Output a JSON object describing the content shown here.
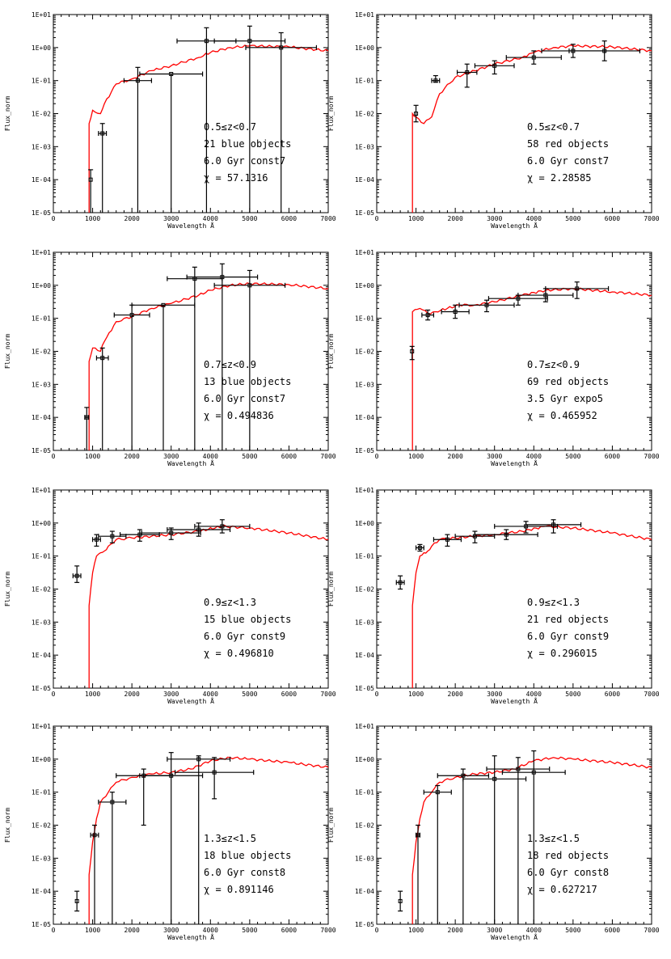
{
  "colors": {
    "model": "#ff0000",
    "data": "#000000",
    "axis": "#000000",
    "background": "#ffffff"
  },
  "common_axes": {
    "xlabel": "Wavelength Å",
    "ylabel": "Flux_norm",
    "xticks": [
      "0",
      "1000",
      "2000",
      "3000",
      "4000",
      "5000",
      "6000",
      "7000"
    ],
    "yticks": [
      "1E-05",
      "1E-04",
      "1E-03",
      "1E-02",
      "1E-01",
      "1E+00",
      "1E+01"
    ]
  },
  "chart_data": [
    {
      "type": "line",
      "title": "",
      "xlabel": "Wavelength Å",
      "ylabel": "Flux_norm",
      "xlim": [
        0,
        7000
      ],
      "ylim_log10": [
        -5,
        1
      ],
      "yscale": "log",
      "annotation": [
        "0.5≤z<0.7",
        "21 blue objects",
        "6.0 Gyr const7",
        "χ = 57.1316"
      ],
      "model": {
        "name": "6.0 Gyr const7",
        "cutoff": 910,
        "points": [
          [
            910,
            -5
          ],
          [
            910,
            -2.3
          ],
          [
            1000,
            -1.9
          ],
          [
            1200,
            -2.0
          ],
          [
            1300,
            -1.7
          ],
          [
            1600,
            -1.1
          ],
          [
            2000,
            -0.95
          ],
          [
            2500,
            -0.7
          ],
          [
            3000,
            -0.55
          ],
          [
            3700,
            -0.3
          ],
          [
            4000,
            -0.15
          ],
          [
            4500,
            0.0
          ],
          [
            5000,
            0.05
          ],
          [
            6000,
            0.02
          ],
          [
            7000,
            -0.1
          ]
        ]
      },
      "observations": [
        {
          "x": 950,
          "xerr": 0,
          "y": -4.0,
          "ylo": -5,
          "yhi": -3.7
        },
        {
          "x": 1250,
          "xerr": 100,
          "y": -2.6,
          "ylo": -5,
          "yhi": -2.3
        },
        {
          "x": 2150,
          "xerr": 350,
          "y": -1.0,
          "ylo": -5,
          "yhi": -0.6
        },
        {
          "x": 3000,
          "xerr": 800,
          "y": -0.8,
          "ylo": -5,
          "yhi": -0.8
        },
        {
          "x": 3900,
          "xerr": 750,
          "y": 0.2,
          "ylo": -5,
          "yhi": 0.6
        },
        {
          "x": 5000,
          "xerr": 900,
          "y": 0.2,
          "ylo": -5,
          "yhi": 0.65
        },
        {
          "x": 5800,
          "xerr": 900,
          "y": 0.0,
          "ylo": -5,
          "yhi": 0.45
        }
      ]
    },
    {
      "type": "line",
      "title": "",
      "xlabel": "Wavelength Å",
      "ylabel": "Flux_norm",
      "xlim": [
        0,
        7000
      ],
      "ylim_log10": [
        -5,
        1
      ],
      "yscale": "log",
      "annotation": [
        "0.5≤z<0.7",
        "58 red objects",
        "6.0 Gyr const7",
        "χ = 2.28585"
      ],
      "model": {
        "name": "6.0 Gyr const7",
        "cutoff": 910,
        "points": [
          [
            910,
            -5
          ],
          [
            910,
            -2.0
          ],
          [
            1000,
            -2.1
          ],
          [
            1200,
            -2.3
          ],
          [
            1400,
            -2.1
          ],
          [
            1600,
            -1.4
          ],
          [
            2000,
            -0.9
          ],
          [
            2500,
            -0.7
          ],
          [
            3000,
            -0.5
          ],
          [
            3700,
            -0.3
          ],
          [
            4000,
            -0.15
          ],
          [
            4500,
            0.0
          ],
          [
            5000,
            0.05
          ],
          [
            6000,
            0.02
          ],
          [
            7000,
            -0.1
          ]
        ]
      },
      "observations": [
        {
          "x": 1000,
          "xerr": 0,
          "y": -2.0,
          "ylo": -2.25,
          "yhi": -1.75
        },
        {
          "x": 1500,
          "xerr": 100,
          "y": -1.0,
          "ylo": -1.05,
          "yhi": -0.85
        },
        {
          "x": 2300,
          "xerr": 250,
          "y": -0.75,
          "ylo": -1.2,
          "yhi": -0.5
        },
        {
          "x": 3000,
          "xerr": 500,
          "y": -0.55,
          "ylo": -0.8,
          "yhi": -0.4
        },
        {
          "x": 4000,
          "xerr": 700,
          "y": -0.3,
          "ylo": -0.5,
          "yhi": -0.1
        },
        {
          "x": 5000,
          "xerr": 800,
          "y": -0.1,
          "ylo": -0.3,
          "yhi": 0.1
        },
        {
          "x": 5800,
          "xerr": 900,
          "y": -0.1,
          "ylo": -0.4,
          "yhi": 0.2
        }
      ]
    },
    {
      "type": "line",
      "title": "",
      "xlabel": "Wavelength Å",
      "ylabel": "Flux_norm",
      "xlim": [
        0,
        7000
      ],
      "ylim_log10": [
        -5,
        1
      ],
      "yscale": "log",
      "annotation": [
        "0.7≤z<0.9",
        "13 blue objects",
        "6.0 Gyr const7",
        "χ = 0.494836"
      ],
      "model": {
        "name": "6.0 Gyr const7",
        "cutoff": 910,
        "points": [
          [
            910,
            -5
          ],
          [
            910,
            -2.3
          ],
          [
            1000,
            -1.9
          ],
          [
            1200,
            -2.0
          ],
          [
            1300,
            -1.7
          ],
          [
            1600,
            -1.1
          ],
          [
            2000,
            -0.95
          ],
          [
            2500,
            -0.7
          ],
          [
            3000,
            -0.55
          ],
          [
            3700,
            -0.3
          ],
          [
            4000,
            -0.15
          ],
          [
            4500,
            0.0
          ],
          [
            5000,
            0.05
          ],
          [
            6000,
            0.02
          ],
          [
            7000,
            -0.1
          ]
        ]
      },
      "observations": [
        {
          "x": 850,
          "xerr": 50,
          "y": -4.0,
          "ylo": -5,
          "yhi": -3.7
        },
        {
          "x": 1250,
          "xerr": 150,
          "y": -2.2,
          "ylo": -5,
          "yhi": -1.9
        },
        {
          "x": 2000,
          "xerr": 450,
          "y": -0.9,
          "ylo": -5,
          "yhi": -0.6
        },
        {
          "x": 2800,
          "xerr": 800,
          "y": -0.6,
          "ylo": -5,
          "yhi": -0.6
        },
        {
          "x": 3600,
          "xerr": 700,
          "y": 0.2,
          "ylo": -5,
          "yhi": 0.55
        },
        {
          "x": 4300,
          "xerr": 900,
          "y": 0.25,
          "ylo": -5,
          "yhi": 0.65
        },
        {
          "x": 5000,
          "xerr": 900,
          "y": 0.0,
          "ylo": -5,
          "yhi": 0.45
        }
      ]
    },
    {
      "type": "line",
      "title": "",
      "xlabel": "Wavelength Å",
      "ylabel": "Flux_norm",
      "xlim": [
        0,
        7000
      ],
      "ylim_log10": [
        -5,
        1
      ],
      "yscale": "log",
      "annotation": [
        "0.7≤z<0.9",
        "69 red objects",
        "3.5 Gyr expo5",
        "χ = 0.465952"
      ],
      "model": {
        "name": "3.5 Gyr expo5",
        "cutoff": 910,
        "points": [
          [
            910,
            -5
          ],
          [
            910,
            -0.8
          ],
          [
            1100,
            -0.7
          ],
          [
            1300,
            -0.85
          ],
          [
            1500,
            -0.8
          ],
          [
            1800,
            -0.7
          ],
          [
            2100,
            -0.6
          ],
          [
            2500,
            -0.6
          ],
          [
            3000,
            -0.5
          ],
          [
            3700,
            -0.3
          ],
          [
            4300,
            -0.15
          ],
          [
            5000,
            -0.1
          ],
          [
            6000,
            -0.2
          ],
          [
            7000,
            -0.3
          ]
        ]
      },
      "observations": [
        {
          "x": 900,
          "xerr": 0,
          "y": -2.0,
          "ylo": -2.25,
          "yhi": -1.85
        },
        {
          "x": 1300,
          "xerr": 150,
          "y": -0.9,
          "ylo": -1.05,
          "yhi": -0.75
        },
        {
          "x": 2000,
          "xerr": 350,
          "y": -0.8,
          "ylo": -1.0,
          "yhi": -0.6
        },
        {
          "x": 2800,
          "xerr": 700,
          "y": -0.6,
          "ylo": -0.8,
          "yhi": -0.45
        },
        {
          "x": 3600,
          "xerr": 750,
          "y": -0.4,
          "ylo": -0.6,
          "yhi": -0.3
        },
        {
          "x": 4300,
          "xerr": 700,
          "y": -0.3,
          "ylo": -0.5,
          "yhi": -0.1
        },
        {
          "x": 5100,
          "xerr": 800,
          "y": -0.1,
          "ylo": -0.4,
          "yhi": 0.1
        }
      ]
    },
    {
      "type": "line",
      "title": "",
      "xlabel": "Wavelength Å",
      "ylabel": "Flux_norm",
      "xlim": [
        0,
        7000
      ],
      "ylim_log10": [
        -5,
        1
      ],
      "yscale": "log",
      "annotation": [
        "0.9≤z<1.3",
        "15 blue objects",
        "6.0 Gyr const9",
        "χ = 0.496810"
      ],
      "model": {
        "name": "6.0 Gyr const9",
        "cutoff": 910,
        "points": [
          [
            910,
            -5
          ],
          [
            910,
            -2.5
          ],
          [
            1000,
            -1.5
          ],
          [
            1100,
            -1.0
          ],
          [
            1200,
            -0.9
          ],
          [
            1300,
            -0.85
          ],
          [
            1400,
            -0.7
          ],
          [
            1600,
            -0.5
          ],
          [
            2000,
            -0.45
          ],
          [
            2500,
            -0.4
          ],
          [
            3000,
            -0.35
          ],
          [
            3700,
            -0.25
          ],
          [
            4300,
            -0.1
          ],
          [
            5000,
            -0.15
          ],
          [
            6000,
            -0.3
          ],
          [
            7000,
            -0.5
          ]
        ]
      },
      "observations": [
        {
          "x": 600,
          "xerr": 100,
          "y": -1.6,
          "ylo": -1.8,
          "yhi": -1.3
        },
        {
          "x": 1100,
          "xerr": 100,
          "y": -0.5,
          "ylo": -0.7,
          "yhi": -0.35
        },
        {
          "x": 1500,
          "xerr": 350,
          "y": -0.4,
          "ylo": -0.6,
          "yhi": -0.25
        },
        {
          "x": 2200,
          "xerr": 500,
          "y": -0.35,
          "ylo": -0.55,
          "yhi": -0.2
        },
        {
          "x": 3000,
          "xerr": 750,
          "y": -0.3,
          "ylo": -0.5,
          "yhi": -0.15
        },
        {
          "x": 3700,
          "xerr": 800,
          "y": -0.2,
          "ylo": -0.4,
          "yhi": 0.0
        },
        {
          "x": 4300,
          "xerr": 700,
          "y": -0.1,
          "ylo": -0.3,
          "yhi": 0.1
        }
      ]
    },
    {
      "type": "line",
      "title": "",
      "xlabel": "Wavelength Å",
      "ylabel": "Flux_norm",
      "xlim": [
        0,
        7000
      ],
      "ylim_log10": [
        -5,
        1
      ],
      "yscale": "log",
      "annotation": [
        "0.9≤z<1.3",
        "21 red objects",
        "6.0 Gyr const9",
        "χ = 0.296015"
      ],
      "model": {
        "name": "6.0 Gyr const9",
        "cutoff": 910,
        "points": [
          [
            910,
            -5
          ],
          [
            910,
            -2.5
          ],
          [
            1000,
            -1.5
          ],
          [
            1100,
            -1.0
          ],
          [
            1200,
            -0.9
          ],
          [
            1300,
            -0.85
          ],
          [
            1400,
            -0.7
          ],
          [
            1600,
            -0.5
          ],
          [
            2000,
            -0.45
          ],
          [
            2500,
            -0.4
          ],
          [
            3000,
            -0.35
          ],
          [
            3700,
            -0.25
          ],
          [
            4300,
            -0.1
          ],
          [
            5000,
            -0.15
          ],
          [
            6000,
            -0.3
          ],
          [
            7000,
            -0.5
          ]
        ]
      },
      "observations": [
        {
          "x": 600,
          "xerr": 100,
          "y": -1.8,
          "ylo": -2.0,
          "yhi": -1.6
        },
        {
          "x": 1100,
          "xerr": 100,
          "y": -0.75,
          "ylo": -0.85,
          "yhi": -0.65
        },
        {
          "x": 1800,
          "xerr": 350,
          "y": -0.5,
          "ylo": -0.7,
          "yhi": -0.35
        },
        {
          "x": 2500,
          "xerr": 500,
          "y": -0.4,
          "ylo": -0.6,
          "yhi": -0.25
        },
        {
          "x": 3300,
          "xerr": 800,
          "y": -0.35,
          "ylo": -0.5,
          "yhi": -0.2
        },
        {
          "x": 3800,
          "xerr": 800,
          "y": -0.1,
          "ylo": -0.3,
          "yhi": 0.05
        },
        {
          "x": 4500,
          "xerr": 700,
          "y": -0.05,
          "ylo": -0.3,
          "yhi": 0.1
        }
      ]
    },
    {
      "type": "line",
      "title": "",
      "xlabel": "Wavelength Å",
      "ylabel": "Flux_norm",
      "xlim": [
        0,
        7000
      ],
      "ylim_log10": [
        -5,
        1
      ],
      "yscale": "log",
      "annotation": [
        "1.3≤z<1.5",
        "18 blue objects",
        "6.0 Gyr const8",
        "χ = 0.891146"
      ],
      "model": {
        "name": "6.0 Gyr const8",
        "cutoff": 910,
        "points": [
          [
            910,
            -5
          ],
          [
            910,
            -3.5
          ],
          [
            1000,
            -2.5
          ],
          [
            1100,
            -1.8
          ],
          [
            1200,
            -1.3
          ],
          [
            1400,
            -1.0
          ],
          [
            1600,
            -0.7
          ],
          [
            2000,
            -0.55
          ],
          [
            2500,
            -0.45
          ],
          [
            3000,
            -0.4
          ],
          [
            3500,
            -0.3
          ],
          [
            4000,
            -0.05
          ],
          [
            4500,
            0.05
          ],
          [
            5000,
            0.0
          ],
          [
            6000,
            -0.1
          ],
          [
            7000,
            -0.25
          ]
        ]
      },
      "observations": [
        {
          "x": 600,
          "xerr": 0,
          "y": -4.3,
          "ylo": -4.6,
          "yhi": -4.0
        },
        {
          "x": 1050,
          "xerr": 100,
          "y": -2.3,
          "ylo": -5,
          "yhi": -2.0
        },
        {
          "x": 1500,
          "xerr": 350,
          "y": -1.3,
          "ylo": -5,
          "yhi": -1.0
        },
        {
          "x": 2300,
          "xerr": 700,
          "y": -0.5,
          "ylo": -2.0,
          "yhi": -0.3
        },
        {
          "x": 3000,
          "xerr": 800,
          "y": -0.5,
          "ylo": -5,
          "yhi": 0.2
        },
        {
          "x": 3700,
          "xerr": 800,
          "y": 0.0,
          "ylo": -5,
          "yhi": 0.1
        },
        {
          "x": 4100,
          "xerr": 1000,
          "y": -0.4,
          "ylo": -1.2,
          "yhi": 0.05
        }
      ]
    },
    {
      "type": "line",
      "title": "",
      "xlabel": "Wavelength Å",
      "ylabel": "Flux_norm",
      "xlim": [
        0,
        7000
      ],
      "ylim_log10": [
        -5,
        1
      ],
      "yscale": "log",
      "annotation": [
        "1.3≤z<1.5",
        "18 red objects",
        "6.0 Gyr const8",
        "χ = 0.627217"
      ],
      "model": {
        "name": "6.0 Gyr const8",
        "cutoff": 910,
        "points": [
          [
            910,
            -5
          ],
          [
            910,
            -3.5
          ],
          [
            1000,
            -2.5
          ],
          [
            1100,
            -1.8
          ],
          [
            1200,
            -1.3
          ],
          [
            1400,
            -1.0
          ],
          [
            1600,
            -0.7
          ],
          [
            2000,
            -0.55
          ],
          [
            2500,
            -0.45
          ],
          [
            3000,
            -0.4
          ],
          [
            3500,
            -0.3
          ],
          [
            4000,
            -0.05
          ],
          [
            4500,
            0.05
          ],
          [
            5000,
            0.0
          ],
          [
            6000,
            -0.1
          ],
          [
            7000,
            -0.25
          ]
        ]
      },
      "observations": [
        {
          "x": 600,
          "xerr": 0,
          "y": -4.3,
          "ylo": -4.6,
          "yhi": -4.0
        },
        {
          "x": 1050,
          "xerr": 50,
          "y": -2.3,
          "ylo": -5,
          "yhi": -2.0
        },
        {
          "x": 1550,
          "xerr": 350,
          "y": -1.0,
          "ylo": -5,
          "yhi": -0.8
        },
        {
          "x": 2200,
          "xerr": 650,
          "y": -0.5,
          "ylo": -5,
          "yhi": -0.3
        },
        {
          "x": 3000,
          "xerr": 800,
          "y": -0.6,
          "ylo": -5,
          "yhi": 0.1
        },
        {
          "x": 3600,
          "xerr": 800,
          "y": -0.3,
          "ylo": -5,
          "yhi": 0.05
        },
        {
          "x": 4000,
          "xerr": 800,
          "y": -0.4,
          "ylo": -5,
          "yhi": 0.25
        }
      ]
    }
  ]
}
